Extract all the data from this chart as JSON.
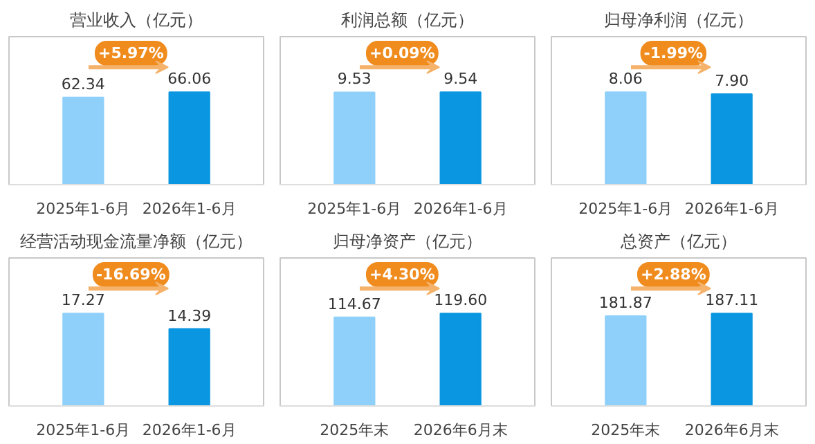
{
  "chart_data": [
    {
      "type": "bar",
      "title": "营业收入（亿元）",
      "categories": [
        "2025年1-6月",
        "2026年1-6月"
      ],
      "values": [
        62.34,
        66.06
      ],
      "value_labels": [
        "62.34",
        "66.06"
      ],
      "colors": [
        "#8fd0fa",
        "#0a96e0"
      ],
      "annotations": [
        "+5.97%"
      ]
    },
    {
      "type": "bar",
      "title": "利润总额（亿元）",
      "categories": [
        "2025年1-6月",
        "2026年1-6月"
      ],
      "values": [
        9.53,
        9.54
      ],
      "value_labels": [
        "9.53",
        "9.54"
      ],
      "colors": [
        "#8fd0fa",
        "#0a96e0"
      ],
      "annotations": [
        "+0.09%"
      ]
    },
    {
      "type": "bar",
      "title": "归母净利润（亿元）",
      "categories": [
        "2025年1-6月",
        "2026年1-6月"
      ],
      "values": [
        8.06,
        7.9
      ],
      "value_labels": [
        "8.06",
        "7.90"
      ],
      "colors": [
        "#8fd0fa",
        "#0a96e0"
      ],
      "annotations": [
        "-1.99%"
      ]
    },
    {
      "type": "bar",
      "title": "经营活动现金流量净额（亿元）",
      "categories": [
        "2025年1-6月",
        "2026年1-6月"
      ],
      "values": [
        17.27,
        14.39
      ],
      "value_labels": [
        "17.27",
        "14.39"
      ],
      "colors": [
        "#8fd0fa",
        "#0a96e0"
      ],
      "annotations": [
        "-16.69%"
      ]
    },
    {
      "type": "bar",
      "title": "归母净资产（亿元）",
      "categories": [
        "2025年末",
        "2026年6月末"
      ],
      "values": [
        114.67,
        119.6
      ],
      "value_labels": [
        "114.67",
        "119.60"
      ],
      "colors": [
        "#8fd0fa",
        "#0a96e0"
      ],
      "annotations": [
        "+4.30%"
      ]
    },
    {
      "type": "bar",
      "title": "总资产（亿元）",
      "categories": [
        "2025年末",
        "2026年6月末"
      ],
      "values": [
        181.87,
        187.11
      ],
      "value_labels": [
        "181.87",
        "187.11"
      ],
      "colors": [
        "#8fd0fa",
        "#0a96e0"
      ],
      "annotations": [
        "+2.88%"
      ]
    }
  ]
}
